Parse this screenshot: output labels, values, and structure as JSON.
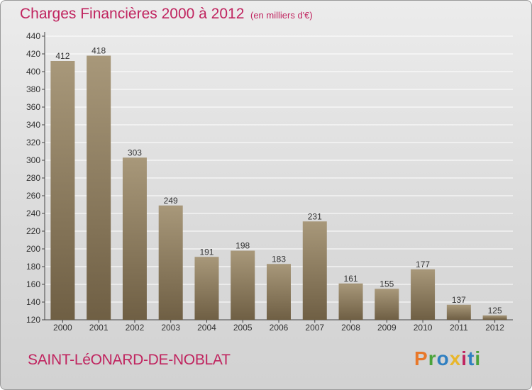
{
  "header": {
    "title": "Charges Financières 2000 à 2012",
    "subtitle": "(en milliers d'€)"
  },
  "footer": {
    "commune": "SAINT-LéONARD-DE-NOBLAT",
    "logo_text": "Proxiti",
    "logo_colors": [
      "#e8782a",
      "#4aa33a",
      "#2f7fc1",
      "#e8b62a",
      "#c0245f",
      "#2f7fc1",
      "#4aa33a"
    ]
  },
  "colors": {
    "bar_light": "#a8987a",
    "bar_dark": "#6f5f44",
    "accent": "#c0245f",
    "axis": "#444444",
    "grid": "#ffffff"
  },
  "chart_data": {
    "type": "bar",
    "categories": [
      "2000",
      "2001",
      "2002",
      "2003",
      "2004",
      "2005",
      "2006",
      "2007",
      "2008",
      "2009",
      "2010",
      "2011",
      "2012"
    ],
    "values": [
      412,
      418,
      303,
      249,
      191,
      198,
      183,
      231,
      161,
      155,
      177,
      137,
      125
    ],
    "ylim": [
      120,
      440
    ],
    "yticks": [
      120,
      140,
      160,
      180,
      200,
      220,
      240,
      260,
      280,
      300,
      320,
      340,
      360,
      380,
      400,
      420,
      440
    ],
    "grid": true,
    "data_labels": true
  }
}
